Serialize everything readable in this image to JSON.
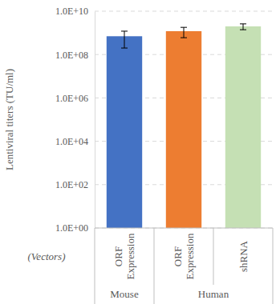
{
  "chart_data": {
    "type": "bar",
    "y_label": "Lentiviral titers (TU/ml)",
    "x_label": "(Vectors)",
    "categories": [
      "ORF Expression",
      "ORF Expression",
      "shRNA"
    ],
    "groups": [
      "Mouse",
      "Human",
      "Human"
    ],
    "values": [
      700000000,
      1200000000,
      2000000000
    ],
    "errors": [
      500000000,
      600000000,
      600000000
    ],
    "colors": [
      "#4472c4",
      "#ed7d31",
      "#c5e0b4"
    ],
    "log": "y",
    "ylim": [
      1,
      10000000000
    ],
    "yticks": [
      {
        "value": 1,
        "label": "1.0E+00"
      },
      {
        "value": 100,
        "label": "1.0E+02"
      },
      {
        "value": 10000,
        "label": "1.0E+04"
      },
      {
        "value": 1000000,
        "label": "1.0E+06"
      },
      {
        "value": 100000000,
        "label": "1.0E+08"
      },
      {
        "value": 10000000000,
        "label": "1.0E+10"
      }
    ],
    "grid": true
  }
}
